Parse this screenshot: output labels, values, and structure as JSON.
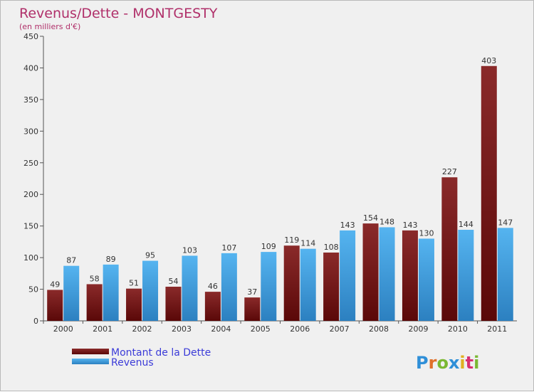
{
  "chart_data": {
    "type": "bar",
    "title": "Revenus/Dette - MONTGESTY",
    "subtitle": "(en milliers d'€)",
    "categories": [
      "2000",
      "2001",
      "2002",
      "2003",
      "2004",
      "2005",
      "2006",
      "2007",
      "2008",
      "2009",
      "2010",
      "2011"
    ],
    "series": [
      {
        "name": "Montant de la Dette",
        "values": [
          49,
          58,
          51,
          54,
          46,
          37,
          119,
          108,
          154,
          143,
          227,
          403
        ],
        "color": "#7a1a1a"
      },
      {
        "name": "Revenus",
        "values": [
          87,
          89,
          95,
          103,
          107,
          109,
          114,
          143,
          148,
          130,
          144,
          147
        ],
        "color": "#3d9ee0"
      }
    ],
    "ylim": [
      0,
      450
    ],
    "yticks": [
      0,
      50,
      100,
      150,
      200,
      250,
      300,
      350,
      400,
      450
    ],
    "grid": false,
    "legend": "bottom-left"
  },
  "logo": {
    "text": "Proxiti"
  },
  "colors": {
    "title": "#b0306a",
    "legend_text": "#3b3bd8",
    "axis": "#555555",
    "bg": "#f0f0f0"
  }
}
